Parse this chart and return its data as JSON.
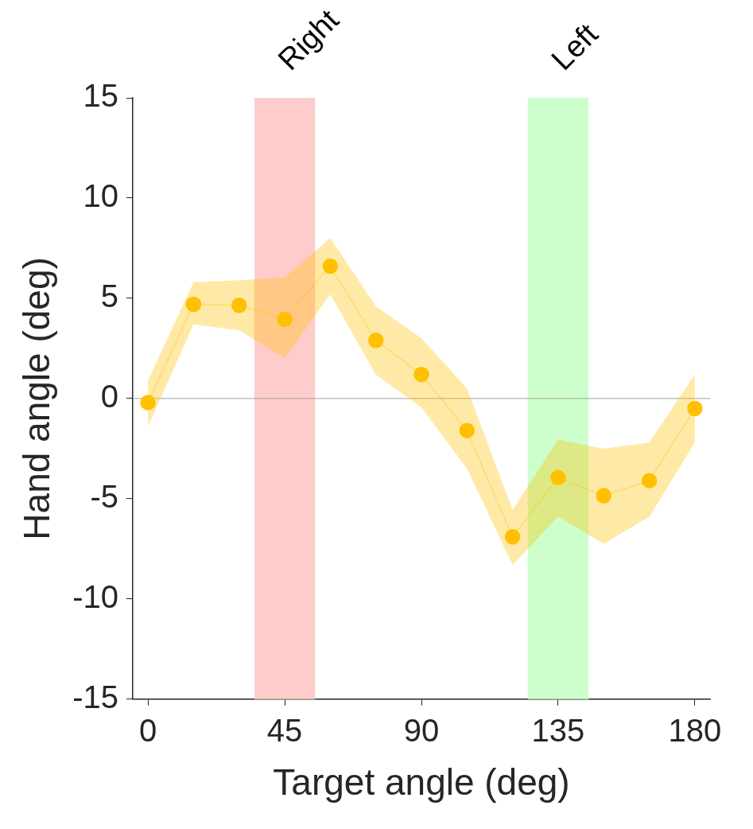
{
  "chart_data": {
    "type": "line",
    "xlabel": "Target angle (deg)",
    "ylabel": "Hand angle (deg)",
    "x": [
      0,
      15,
      30,
      45,
      60,
      75,
      90,
      105,
      120,
      135,
      150,
      165,
      180
    ],
    "series": [
      {
        "color": "#ffc000",
        "values": [
          -0.2,
          4.7,
          4.65,
          3.95,
          6.6,
          2.9,
          1.2,
          -1.6,
          -6.9,
          -3.95,
          -4.85,
          -4.1,
          -0.5
        ],
        "lower": [
          -1.4,
          3.7,
          3.4,
          2.0,
          5.2,
          1.2,
          -0.45,
          -3.5,
          -8.3,
          -5.9,
          -7.25,
          -5.9,
          -2.2
        ],
        "upper": [
          0.9,
          5.8,
          5.9,
          6.05,
          8.0,
          4.6,
          3.0,
          0.5,
          -5.55,
          -2.05,
          -2.5,
          -2.2,
          1.2
        ]
      }
    ],
    "xlim": [
      -5,
      185
    ],
    "xticks": [
      0,
      45,
      90,
      135,
      180
    ],
    "ylim": [
      -15,
      15
    ],
    "yticks": [
      -15,
      -10,
      -5,
      0,
      5,
      10,
      15
    ],
    "marker": "circle",
    "line_style": "solid",
    "bands": [
      {
        "axis": "x",
        "from": 35,
        "to": 55,
        "label": "Right",
        "color": "#ffcccc"
      },
      {
        "axis": "x",
        "from": 125,
        "to": 145,
        "label": "Left",
        "color": "#ccffcc"
      }
    ],
    "ref_lines": [
      {
        "axis": "y",
        "value": 0,
        "color": "#a0a0a0"
      }
    ],
    "grid": false,
    "legend": false
  }
}
